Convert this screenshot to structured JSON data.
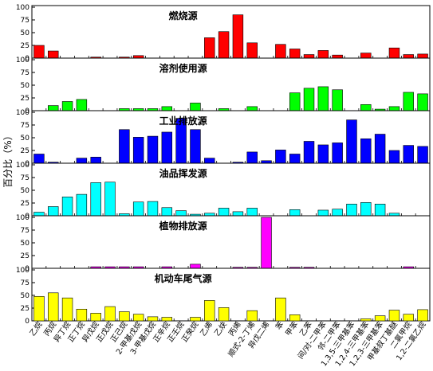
{
  "chart_data": {
    "type": "bar",
    "ylabel": "百分比（%）",
    "ylim": [
      0,
      100
    ],
    "yticks": [
      0,
      25,
      50,
      75,
      100
    ],
    "categories": [
      "乙烷",
      "丙烷",
      "异丁烷",
      "正丁烷",
      "异戊烷",
      "正戊烷",
      "正己烷",
      "2-甲基戊烷",
      "3-甲基戊烷",
      "正辛烷",
      "正壬烷",
      "正癸烷",
      "乙烯",
      "乙炔",
      "丙烯",
      "顺式-2-丁烯",
      "异戊二烯",
      "苯",
      "甲苯",
      "乙苯",
      "间/对-二甲苯",
      "邻-二甲苯",
      "1,3,5-三甲基苯",
      "1,2,4-三甲基苯",
      "1,2,3-三甲基苯",
      "甲基叔丁基醚",
      "二氯甲烷",
      "1,2-二氯乙烷"
    ],
    "panels": [
      {
        "name": "燃烧源",
        "color": "#ff0000",
        "values": [
          25,
          14,
          0,
          0,
          2,
          0,
          2,
          5,
          0,
          0,
          0,
          0,
          40,
          52,
          85,
          30,
          0,
          27,
          18,
          7,
          15,
          6,
          0,
          10,
          0,
          20,
          7,
          8
        ]
      },
      {
        "name": "溶剂使用源",
        "color": "#00ff00",
        "values": [
          0,
          10,
          18,
          22,
          0,
          0,
          4,
          4,
          4,
          8,
          0,
          15,
          0,
          4,
          0,
          8,
          0,
          0,
          35,
          44,
          47,
          41,
          0,
          12,
          3,
          8,
          36,
          33
        ]
      },
      {
        "name": "工业排放源",
        "color": "#0000ff",
        "values": [
          18,
          2,
          0,
          10,
          12,
          0,
          66,
          51,
          53,
          61,
          88,
          66,
          10,
          0,
          2,
          22,
          5,
          26,
          18,
          43,
          36,
          40,
          85,
          48,
          57,
          25,
          35,
          33
        ]
      },
      {
        "name": "油品挥发源",
        "color": "#00ffff",
        "values": [
          7,
          18,
          37,
          42,
          65,
          66,
          4,
          27,
          28,
          16,
          10,
          3,
          5,
          15,
          8,
          15,
          0,
          0,
          12,
          0,
          11,
          13,
          23,
          26,
          23,
          5,
          0,
          0
        ]
      },
      {
        "name": "植物排放源",
        "color": "#ff00ff",
        "values": [
          0,
          0,
          0,
          0,
          3,
          3,
          3,
          3,
          0,
          3,
          0,
          8,
          0,
          0,
          2,
          2,
          100,
          0,
          2,
          2,
          0,
          0,
          0,
          0,
          0,
          0,
          3,
          0
        ]
      },
      {
        "name": "机动车尾气源",
        "color": "#ffff00",
        "values": [
          48,
          55,
          45,
          23,
          15,
          28,
          18,
          13,
          8,
          7,
          0,
          7,
          40,
          26,
          0,
          20,
          0,
          45,
          12,
          0,
          0,
          0,
          0,
          4,
          10,
          21,
          13,
          22
        ]
      }
    ]
  }
}
